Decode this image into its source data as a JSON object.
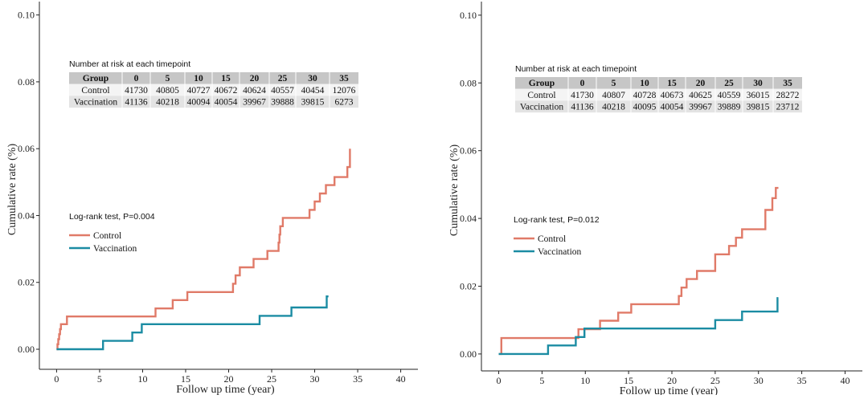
{
  "chart_data": [
    {
      "type": "line",
      "step": true,
      "xlabel": "Follow up time (year)",
      "ylabel": "Cumulative rate (%)",
      "xlim": [
        -2,
        42
      ],
      "ylim": [
        -0.006,
        0.104
      ],
      "x_ticks": [
        0,
        5,
        10,
        15,
        20,
        25,
        30,
        35,
        40
      ],
      "x_tick_labels": [
        "0",
        "5",
        "10",
        "15",
        "20",
        "25",
        "30",
        "35",
        "40"
      ],
      "y_ticks": [
        0,
        0.02,
        0.04,
        0.06,
        0.08,
        0.1
      ],
      "y_tick_labels": [
        "0.00",
        "0.02",
        "0.04",
        "0.06",
        "0.08",
        "0.10"
      ],
      "grid": false,
      "annotation": "Log-rank test, P=0.004",
      "series": [
        {
          "name": "Control",
          "color": "#e07a68",
          "x": [
            0,
            0.1,
            0.2,
            0.3,
            0.4,
            0.5,
            0.7,
            1.2,
            11.5,
            13.5,
            15.2,
            20.5,
            20.8,
            21.0,
            21.3,
            22.9,
            24.5,
            25.8,
            25.9,
            26.0,
            26.1,
            26.3,
            29.4,
            30.0,
            30.6,
            31.3,
            32.3,
            33.8,
            34.1
          ],
          "y": [
            0,
            0.0015,
            0.003,
            0.0045,
            0.006,
            0.0075,
            0.0075,
            0.0098,
            0.0122,
            0.0147,
            0.0171,
            0.0196,
            0.0221,
            0.0221,
            0.0245,
            0.027,
            0.0294,
            0.0319,
            0.0343,
            0.0368,
            0.0368,
            0.0393,
            0.0417,
            0.0442,
            0.0466,
            0.0491,
            0.0515,
            0.0545,
            0.06
          ]
        },
        {
          "name": "Vaccination",
          "color": "#1b8ca3",
          "x": [
            0,
            5.4,
            8.8,
            9.9,
            23.6,
            27.3,
            31.4,
            31.6
          ],
          "y": [
            0,
            0.0025,
            0.005,
            0.0075,
            0.01,
            0.0125,
            0.0158,
            0.0158
          ]
        }
      ],
      "risk_table": {
        "title": "Number at risk  at each timepoint",
        "header": [
          "Group",
          "0",
          "5",
          "10",
          "15",
          "20",
          "25",
          "30",
          "35"
        ],
        "rows": [
          [
            "Control",
            "41730",
            "40805",
            "40727",
            "40672",
            "40624",
            "40557",
            "40454",
            "12076"
          ],
          [
            "Vaccination",
            "41136",
            "40218",
            "40094",
            "40054",
            "39967",
            "39888",
            "39815",
            "6273"
          ]
        ]
      }
    },
    {
      "type": "line",
      "step": true,
      "xlabel": "Follow up time (year)",
      "ylabel": "Cumulative rate (%)",
      "xlim": [
        -2,
        42
      ],
      "ylim": [
        -0.005,
        0.104
      ],
      "x_ticks": [
        0,
        5,
        10,
        15,
        20,
        25,
        30,
        35,
        40
      ],
      "x_tick_labels": [
        "0",
        "5",
        "10",
        "15",
        "20",
        "25",
        "30",
        "35",
        "40"
      ],
      "y_ticks": [
        0,
        0.02,
        0.04,
        0.06,
        0.08,
        0.1
      ],
      "y_tick_labels": [
        "0.00",
        "0.02",
        "0.04",
        "0.06",
        "0.08",
        "0.10"
      ],
      "grid": false,
      "annotation": "Log-rank test, P=0.012",
      "series": [
        {
          "name": "Control",
          "color": "#e07a68",
          "x": [
            0,
            0.3,
            9.2,
            11.7,
            13.8,
            15.3,
            20.8,
            21.1,
            21.7,
            22.9,
            25.0,
            26.6,
            27.4,
            28.1,
            30.8,
            31.6,
            32.0,
            32.3
          ],
          "y": [
            0,
            0.0047,
            0.0073,
            0.0098,
            0.0122,
            0.0147,
            0.0171,
            0.0196,
            0.0221,
            0.0245,
            0.0294,
            0.0319,
            0.0343,
            0.0368,
            0.0425,
            0.046,
            0.049,
            0.049
          ]
        },
        {
          "name": "Vaccination",
          "color": "#1b8ca3",
          "x": [
            0,
            5.7,
            8.9,
            9.9,
            25.0,
            28.1,
            32.2,
            32.3
          ],
          "y": [
            0,
            0.0025,
            0.005,
            0.0075,
            0.01,
            0.0125,
            0.0165,
            0.0165
          ]
        }
      ],
      "risk_table": {
        "title": "Number at risk  at each timepoint",
        "header": [
          "Group",
          "0",
          "5",
          "10",
          "15",
          "20",
          "25",
          "30",
          "35"
        ],
        "rows": [
          [
            "Control",
            "41730",
            "40807",
            "40728",
            "40673",
            "40625",
            "40559",
            "36015",
            "28272"
          ],
          [
            "Vaccination",
            "41136",
            "40218",
            "40095",
            "40054",
            "39967",
            "39889",
            "39815",
            "23712"
          ]
        ]
      }
    }
  ]
}
